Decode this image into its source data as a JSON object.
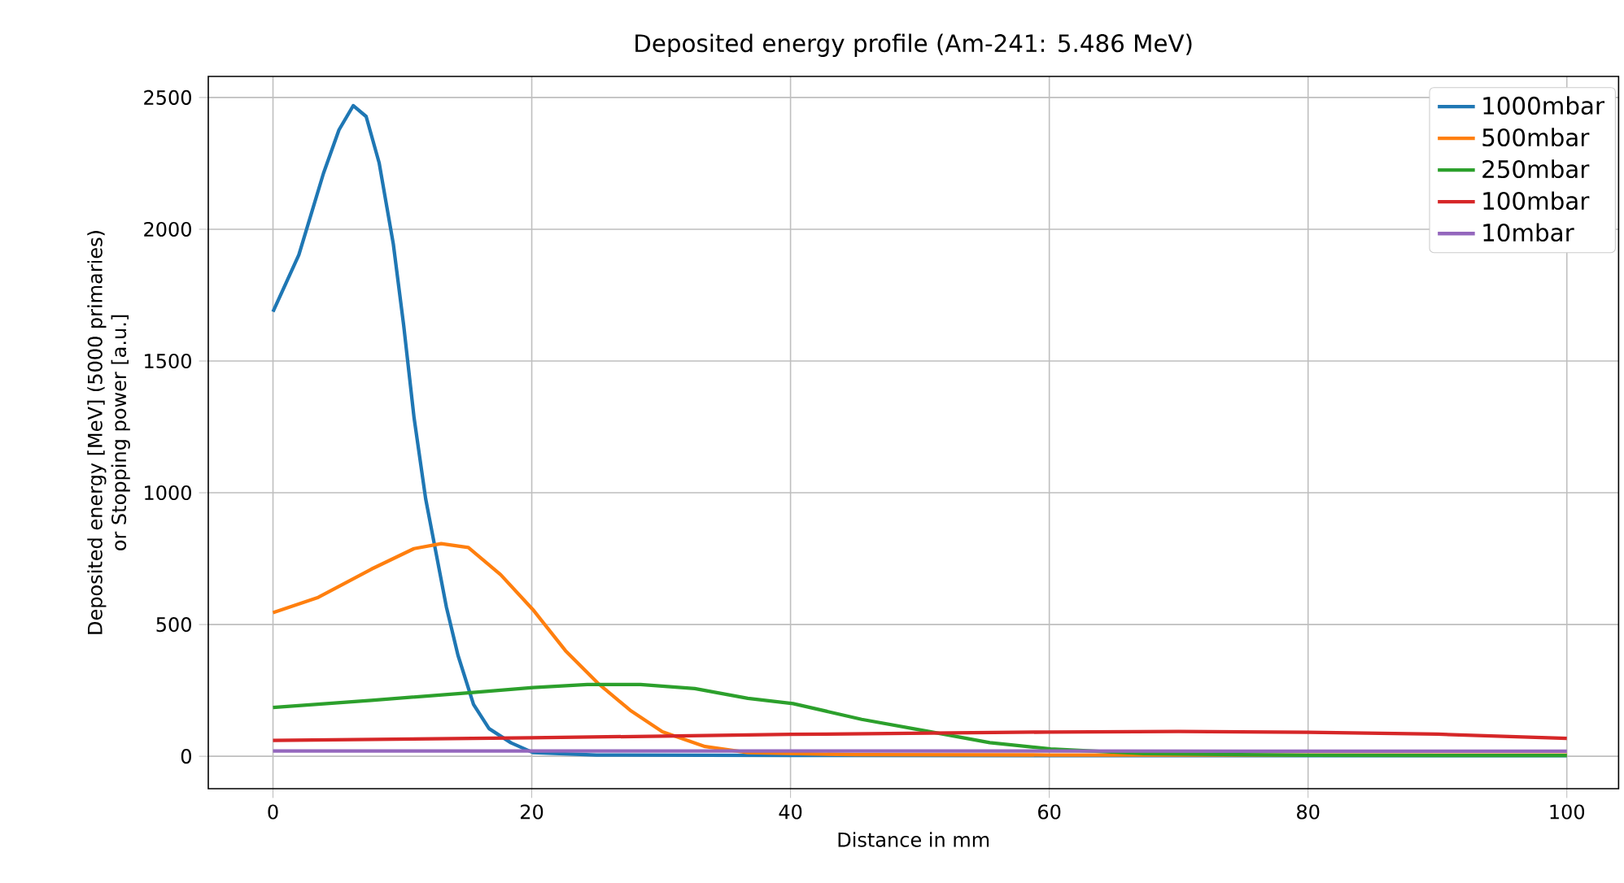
{
  "chart_data": {
    "type": "line",
    "title": "Deposited energy profile (Am-241: 5.486 MeV)",
    "xlabel": "Distance in mm",
    "ylabel": "Deposited energy [MeV] (5000 primaries)\nor Stopping power [a.u.]",
    "xlim": [
      -5,
      104
    ],
    "ylim": [
      -123,
      2580
    ],
    "xticks": [
      0,
      20,
      40,
      60,
      80,
      100
    ],
    "yticks": [
      0,
      500,
      1000,
      1500,
      2000,
      2500
    ],
    "grid": true,
    "legend": "top right",
    "series": [
      {
        "name": "1000mbar",
        "color": "#1f77b4",
        "x": [
          0,
          2,
          3.9,
          5.1,
          6.2,
          7.2,
          8.2,
          9.3,
          10.1,
          10.9,
          11.8,
          12.6,
          13.4,
          14.3,
          15.5,
          16.7,
          18.4,
          20.1,
          25,
          40,
          60,
          80,
          100
        ],
        "values": [
          1687,
          1903,
          2212,
          2377,
          2469,
          2428,
          2253,
          1944,
          1636,
          1286,
          977,
          772,
          567,
          383,
          197,
          105,
          51,
          14,
          5,
          3,
          2,
          2,
          2
        ]
      },
      {
        "name": "500mbar",
        "color": "#ff7f0e",
        "x": [
          0,
          3.5,
          7.6,
          10.9,
          13,
          15.1,
          17.6,
          20.1,
          22.6,
          25.1,
          27.6,
          30.1,
          33.4,
          36.7,
          45,
          60,
          80,
          100
        ],
        "values": [
          545,
          603,
          710,
          788,
          807,
          792,
          689,
          556,
          401,
          278,
          175,
          93,
          37,
          14,
          6,
          5,
          5,
          5
        ]
      },
      {
        "name": "250mbar",
        "color": "#2ca02c",
        "x": [
          0,
          7.6,
          15.1,
          20.1,
          24.3,
          28.4,
          32.6,
          36.7,
          40.2,
          45.5,
          50.6,
          55.4,
          60.1,
          67.3,
          80,
          100
        ],
        "values": [
          185,
          212,
          241,
          261,
          272,
          272,
          257,
          220,
          200,
          140,
          95,
          52,
          28,
          10,
          4,
          3
        ]
      },
      {
        "name": "100mbar",
        "color": "#d62728",
        "x": [
          0,
          20,
          40,
          60,
          70,
          80,
          90,
          100
        ],
        "values": [
          60,
          70,
          83,
          92,
          94,
          91,
          84,
          68
        ]
      },
      {
        "name": "10mbar",
        "color": "#9467bd",
        "x": [
          0,
          50,
          100
        ],
        "values": [
          20,
          20,
          19
        ]
      }
    ]
  }
}
